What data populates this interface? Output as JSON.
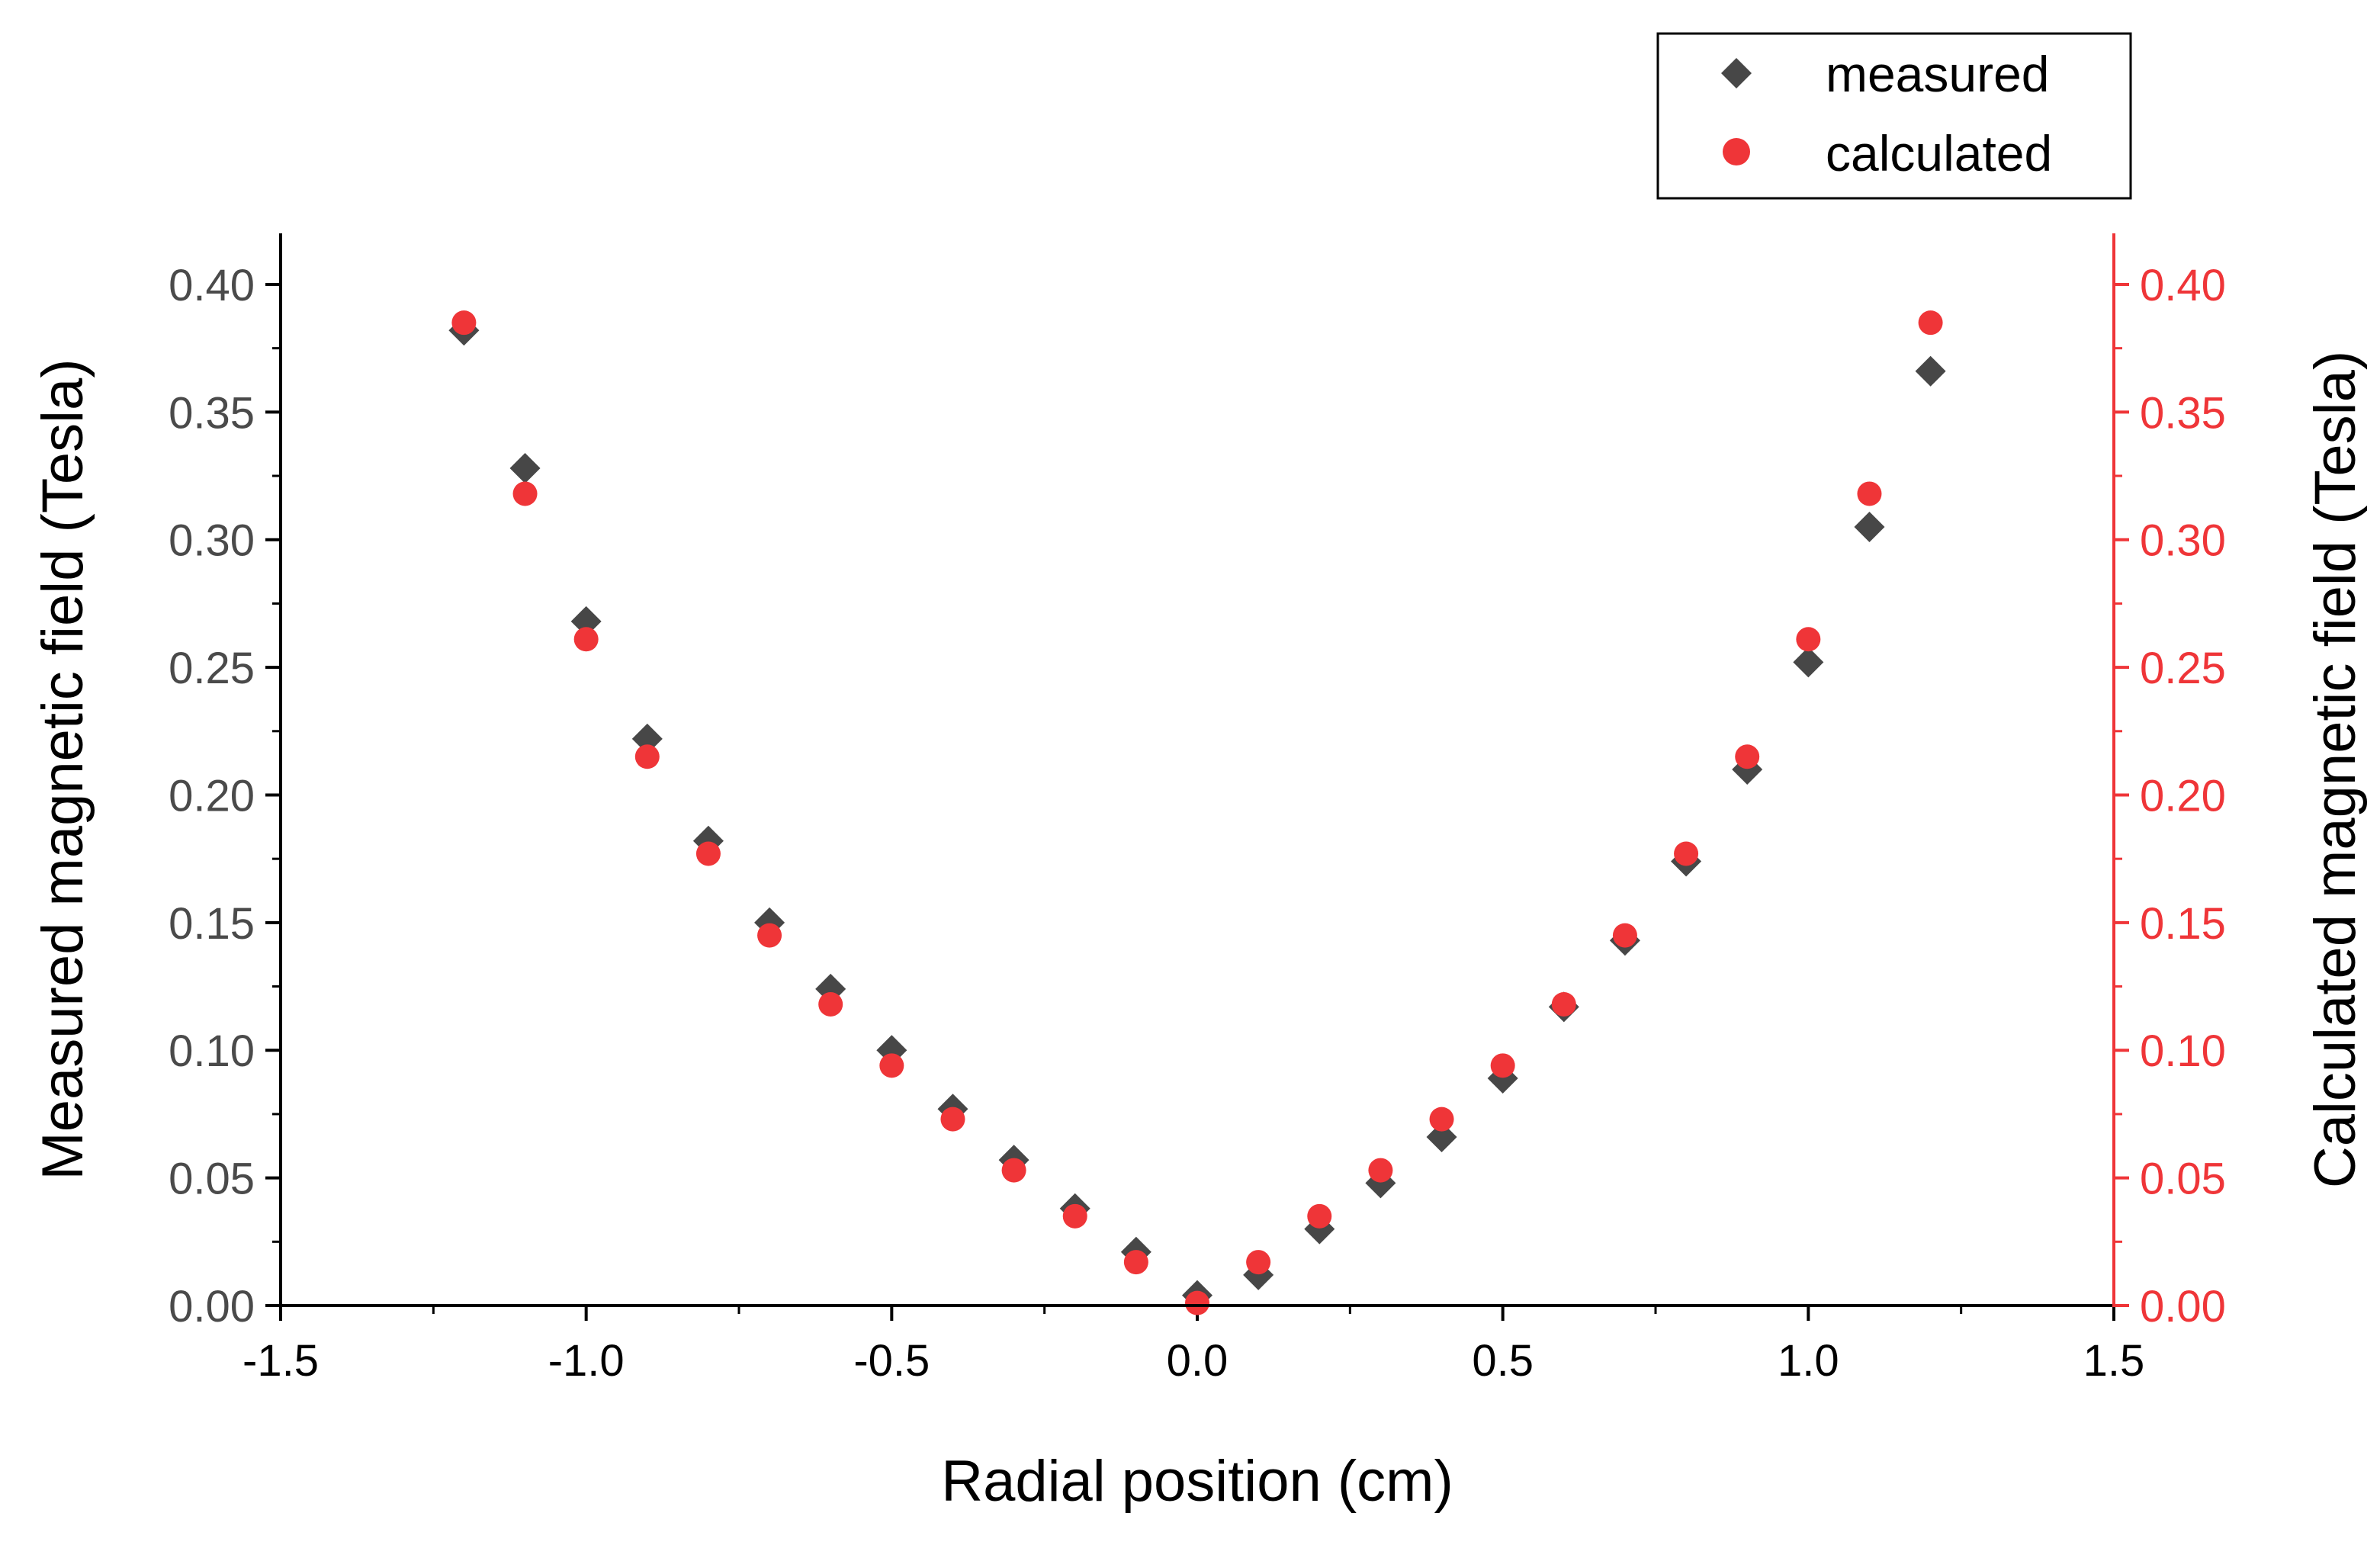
{
  "chart_data": {
    "type": "scatter",
    "title": "",
    "xlabel": "Radial position (cm)",
    "ylabel_left": "Measured magnetic field (Tesla)",
    "ylabel_right": "Calculated magnetic field (Tesla)",
    "xlim": [
      -1.5,
      1.5
    ],
    "ylim_left": [
      0,
      0.42
    ],
    "ylim_right": [
      0,
      0.42
    ],
    "xticks": [
      "-1.5",
      "-1.0",
      "-0.5",
      "0.0",
      "0.5",
      "1.0",
      "1.5"
    ],
    "yticks": [
      "0.00",
      "0.05",
      "0.10",
      "0.15",
      "0.20",
      "0.25",
      "0.30",
      "0.35",
      "0.40"
    ],
    "grid": false,
    "legend_position": "top-right",
    "colors": {
      "measured": "#474747",
      "calculated": "#ef3538",
      "right_axis": "#ef3538"
    },
    "series": [
      {
        "name": "measured",
        "axis": "left",
        "marker": "diamond",
        "x": [
          -1.2,
          -1.1,
          -1.0,
          -0.9,
          -0.8,
          -0.7,
          -0.6,
          -0.5,
          -0.4,
          -0.3,
          -0.2,
          -0.1,
          0.0,
          0.1,
          0.2,
          0.3,
          0.4,
          0.5,
          0.6,
          0.7,
          0.8,
          0.9,
          1.0,
          1.1,
          1.2
        ],
        "y": [
          0.382,
          0.328,
          0.268,
          0.222,
          0.182,
          0.15,
          0.124,
          0.1,
          0.077,
          0.057,
          0.038,
          0.021,
          0.004,
          0.012,
          0.03,
          0.048,
          0.066,
          0.089,
          0.117,
          0.143,
          0.174,
          0.21,
          0.252,
          0.305,
          0.366
        ]
      },
      {
        "name": "calculated",
        "axis": "right",
        "marker": "circle",
        "x": [
          -1.2,
          -1.1,
          -1.0,
          -0.9,
          -0.8,
          -0.7,
          -0.6,
          -0.5,
          -0.4,
          -0.3,
          -0.2,
          -0.1,
          0.0,
          0.1,
          0.2,
          0.3,
          0.4,
          0.5,
          0.6,
          0.7,
          0.8,
          0.9,
          1.0,
          1.1,
          1.2
        ],
        "y": [
          0.385,
          0.318,
          0.261,
          0.215,
          0.177,
          0.145,
          0.118,
          0.094,
          0.073,
          0.053,
          0.035,
          0.017,
          0.001,
          0.017,
          0.035,
          0.053,
          0.073,
          0.094,
          0.118,
          0.145,
          0.177,
          0.215,
          0.261,
          0.318,
          0.385
        ]
      }
    ]
  }
}
